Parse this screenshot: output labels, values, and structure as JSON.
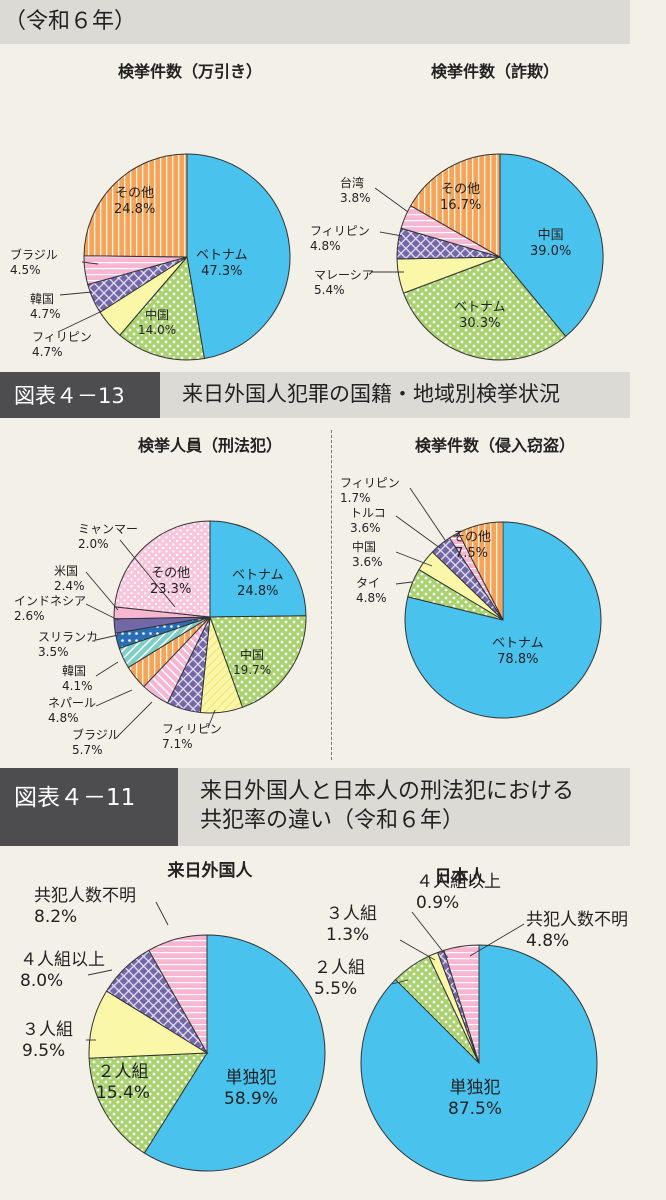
{
  "top_header": "（令和６年）",
  "fig13": {
    "tag": "図表４－13",
    "title": "来日外国人犯罪の国籍・地域別検挙状況"
  },
  "fig11": {
    "tag": "図表４－11",
    "title_line1": "来日外国人と日本人の刑法犯における",
    "title_line2": "共犯率の違い（令和６年）"
  },
  "colors": {
    "blue": "#4ac2ee",
    "green": "#a8d36e",
    "yellow": "#fbf7a8",
    "purple": "#7367a8",
    "pink": "#f7b7d2",
    "orange": "#f6a45a",
    "teal": "#7fcfc7",
    "navy": "#2a6fb5"
  },
  "chart_data": [
    {
      "id": "manbiki",
      "type": "pie",
      "title": "検挙件数（万引き）",
      "categories": [
        "ベトナム",
        "中国",
        "フィリピン",
        "韓国",
        "ブラジル",
        "その他"
      ],
      "values": [
        47.3,
        14.0,
        4.7,
        4.7,
        4.5,
        24.8
      ],
      "labels": [
        "47.3%",
        "14.0%",
        "4.7%",
        "4.7%",
        "4.5%",
        "24.8%"
      ]
    },
    {
      "id": "sagi",
      "type": "pie",
      "title": "検挙件数（詐欺）",
      "categories": [
        "中国",
        "ベトナム",
        "マレーシア",
        "フィリピン",
        "台湾",
        "その他"
      ],
      "values": [
        39.0,
        30.3,
        5.4,
        4.8,
        3.8,
        16.7
      ],
      "labels": [
        "39.0%",
        "30.3%",
        "5.4%",
        "4.8%",
        "3.8%",
        "16.7%"
      ]
    },
    {
      "id": "keihou",
      "type": "pie",
      "title": "検挙人員（刑法犯）",
      "categories": [
        "ベトナム",
        "中国",
        "フィリピン",
        "ブラジル",
        "ネパール",
        "韓国",
        "スリランカ",
        "インドネシア",
        "米国",
        "ミャンマー",
        "その他"
      ],
      "values": [
        24.8,
        19.7,
        7.1,
        5.7,
        4.8,
        4.1,
        3.5,
        2.6,
        2.4,
        2.0,
        23.3
      ],
      "labels": [
        "24.8%",
        "19.7%",
        "7.1%",
        "5.7%",
        "4.8%",
        "4.1%",
        "3.5%",
        "2.6%",
        "2.4%",
        "2.0%",
        "23.3%"
      ]
    },
    {
      "id": "shinnyu",
      "type": "pie",
      "title": "検挙件数（侵入窃盗）",
      "categories": [
        "ベトナム",
        "タイ",
        "中国",
        "トルコ",
        "フィリピン",
        "その他"
      ],
      "values": [
        78.8,
        4.8,
        3.6,
        3.6,
        1.7,
        7.5
      ],
      "labels": [
        "78.8%",
        "4.8%",
        "3.6%",
        "3.6%",
        "1.7%",
        "7.5%"
      ]
    },
    {
      "id": "rainichi",
      "type": "pie",
      "title": "来日外国人",
      "categories": [
        "単独犯",
        "２人組",
        "３人組",
        "４人組以上",
        "共犯人数不明"
      ],
      "values": [
        58.9,
        15.4,
        9.5,
        8.0,
        8.2
      ],
      "labels": [
        "58.9%",
        "15.4%",
        "9.5%",
        "8.0%",
        "8.2%"
      ]
    },
    {
      "id": "nihonjin",
      "type": "pie",
      "title": "日本人",
      "categories": [
        "単独犯",
        "２人組",
        "３人組",
        "４人組以上",
        "共犯人数不明"
      ],
      "values": [
        87.5,
        5.5,
        1.3,
        0.9,
        4.8
      ],
      "labels": [
        "87.5%",
        "5.5%",
        "1.3%",
        "0.9%",
        "4.8%"
      ]
    }
  ]
}
